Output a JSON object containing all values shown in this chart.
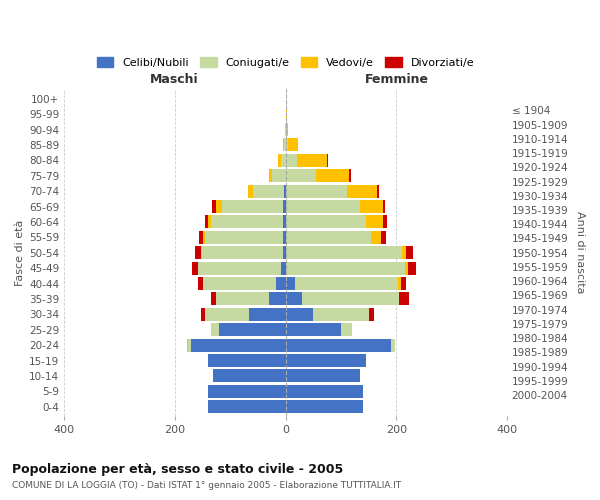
{
  "age_groups": [
    "0-4",
    "5-9",
    "10-14",
    "15-19",
    "20-24",
    "25-29",
    "30-34",
    "35-39",
    "40-44",
    "45-49",
    "50-54",
    "55-59",
    "60-64",
    "65-69",
    "70-74",
    "75-79",
    "80-84",
    "85-89",
    "90-94",
    "95-99",
    "100+"
  ],
  "birth_years": [
    "2000-2004",
    "1995-1999",
    "1990-1994",
    "1985-1989",
    "1980-1984",
    "1975-1979",
    "1970-1974",
    "1965-1969",
    "1960-1964",
    "1955-1959",
    "1950-1954",
    "1945-1949",
    "1940-1944",
    "1935-1939",
    "1930-1934",
    "1925-1929",
    "1920-1924",
    "1915-1919",
    "1910-1914",
    "1905-1909",
    "≤ 1904"
  ],
  "maschi_celibe": [
    140,
    140,
    130,
    140,
    170,
    120,
    65,
    30,
    18,
    8,
    5,
    5,
    5,
    5,
    3,
    0,
    0,
    0,
    0,
    0,
    0
  ],
  "maschi_coniugato": [
    0,
    0,
    0,
    0,
    5,
    15,
    80,
    95,
    130,
    150,
    145,
    140,
    130,
    110,
    55,
    25,
    8,
    3,
    1,
    0,
    0
  ],
  "maschi_vedovo": [
    0,
    0,
    0,
    0,
    2,
    0,
    0,
    0,
    0,
    0,
    3,
    3,
    5,
    10,
    10,
    5,
    5,
    2,
    0,
    0,
    0
  ],
  "maschi_divorziato": [
    0,
    0,
    0,
    0,
    0,
    0,
    8,
    10,
    10,
    10,
    10,
    8,
    5,
    8,
    0,
    0,
    0,
    0,
    0,
    0,
    0
  ],
  "femmine_celibe": [
    140,
    140,
    135,
    145,
    190,
    100,
    50,
    30,
    18,
    0,
    0,
    0,
    0,
    0,
    0,
    0,
    0,
    0,
    0,
    0,
    0
  ],
  "femmine_coniugato": [
    0,
    0,
    0,
    0,
    8,
    20,
    100,
    175,
    185,
    215,
    210,
    155,
    145,
    135,
    110,
    55,
    20,
    5,
    2,
    1,
    0
  ],
  "femmine_vedovo": [
    0,
    0,
    0,
    0,
    0,
    0,
    0,
    0,
    5,
    5,
    8,
    18,
    30,
    40,
    55,
    60,
    55,
    18,
    3,
    1,
    0
  ],
  "femmine_divorziato": [
    0,
    0,
    0,
    0,
    0,
    0,
    10,
    18,
    10,
    15,
    12,
    8,
    8,
    5,
    3,
    3,
    2,
    0,
    0,
    0,
    0
  ],
  "colors": {
    "celibe": "#4472C4",
    "coniugato": "#C5D9A0",
    "vedovo": "#FFC000",
    "divorziato": "#CC0000"
  },
  "title": "Popolazione per età, sesso e stato civile - 2005",
  "subtitle": "COMUNE DI LA LOGGIA (TO) - Dati ISTAT 1° gennaio 2005 - Elaborazione TUTTITALIA.IT",
  "xlabel_left": "Maschi",
  "xlabel_right": "Femmine",
  "ylabel_left": "Fasce di età",
  "ylabel_right": "Anni di nascita",
  "xlim": [
    -400,
    400
  ],
  "xticks": [
    -400,
    -200,
    0,
    200,
    400
  ],
  "xtick_labels": [
    "400",
    "200",
    "0",
    "200",
    "400"
  ],
  "legend_labels": [
    "Celibi/Nubili",
    "Coniugati/e",
    "Vedovi/e",
    "Divorziati/e"
  ]
}
